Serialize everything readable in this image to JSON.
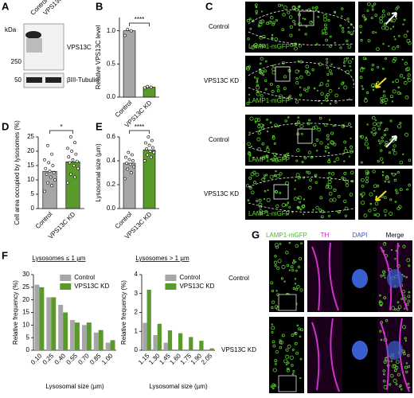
{
  "panel_labels": [
    "A",
    "B",
    "C",
    "D",
    "E",
    "F",
    "G"
  ],
  "panel_a": {
    "unit": "kDa",
    "lanes": [
      "Control",
      "VPS13C KD"
    ],
    "markers": [
      "250",
      "50"
    ],
    "bands": [
      "VPS13C",
      "βIII-Tubulin"
    ]
  },
  "panel_c": {
    "rows": [
      {
        "label": "Control",
        "tag": "LAMP1-mGFP"
      },
      {
        "label": "VPS13C KD",
        "tag": "LAMP1-mGFP"
      },
      {
        "label": "Control",
        "tag": "LAMP1-mGFP"
      },
      {
        "label": "VPS13C KD",
        "tag": "LAMP1-mGFP"
      }
    ]
  },
  "panel_g": {
    "headers": [
      "LAMP1-mGFP",
      "TH",
      "DAPI",
      "Merge"
    ],
    "rows": [
      "Control",
      "VPS13C KD"
    ]
  },
  "chart_data": [
    {
      "type": "bar",
      "y_label": "Relative VPS13C level",
      "categories": [
        "Control",
        "VPS13C KD"
      ],
      "values": [
        1.0,
        0.15
      ],
      "colors": [
        "#a6a6a6",
        "#5a9a2a"
      ],
      "points": [
        [
          0.93,
          1.0,
          1.02
        ],
        [
          0.14,
          0.15,
          0.16
        ]
      ],
      "significance": "****",
      "ylim": [
        0,
        1.2
      ],
      "yticks": [
        {
          "value": 0,
          "label": "0.0"
        },
        {
          "value": 0.5,
          "label": "0.5"
        },
        {
          "value": 1,
          "label": "1.0"
        }
      ]
    },
    {
      "type": "bar",
      "y_label": "Cell area occupied by lysosomes (%)",
      "categories": [
        "Control",
        "VPS13C KD"
      ],
      "values": [
        13.0,
        16.3
      ],
      "colors": [
        "#a6a6a6",
        "#5a9a2a"
      ],
      "points": [
        [
          6,
          8,
          9,
          10,
          11,
          12,
          12.5,
          13,
          14,
          15,
          16,
          17,
          19,
          22
        ],
        [
          9,
          11,
          12,
          14,
          15,
          16,
          16.5,
          17,
          18,
          19,
          20,
          21,
          23,
          25
        ]
      ],
      "significance": "*",
      "ylim": [
        0,
        25
      ],
      "yticks": [
        0,
        5,
        10,
        15,
        20,
        25
      ]
    },
    {
      "type": "bar",
      "y_label": "Lysosomal size (µm)",
      "categories": [
        "Control",
        "VPS13C KD"
      ],
      "values": [
        0.38,
        0.49
      ],
      "colors": [
        "#a6a6a6",
        "#5a9a2a"
      ],
      "points": [
        [
          0.25,
          0.3,
          0.33,
          0.35,
          0.37,
          0.38,
          0.4,
          0.41,
          0.43,
          0.45,
          0.47
        ],
        [
          0.4,
          0.43,
          0.45,
          0.47,
          0.48,
          0.5,
          0.51,
          0.53,
          0.55,
          0.57,
          0.6
        ]
      ],
      "significance": "****",
      "ylim": [
        0,
        0.6
      ],
      "yticks": [
        {
          "value": 0,
          "label": "0.0"
        },
        {
          "value": 0.2,
          "label": "0.2"
        },
        {
          "value": 0.4,
          "label": "0.4"
        },
        {
          "value": 0.6,
          "label": "0.6"
        }
      ]
    },
    {
      "type": "grouped-bar",
      "title": "Lysosomes ≤ 1 µm",
      "x_label": "Lysosomal size (µm)",
      "y_label": "Relative frequency (%)",
      "categories": [
        "0.10",
        "0.25",
        "0.40",
        "0.55",
        "0.70",
        "0.85",
        "1.00"
      ],
      "series": [
        {
          "name": "Control",
          "color": "#a6a6a6",
          "values": [
            26,
            21,
            18,
            12,
            10,
            7,
            3
          ]
        },
        {
          "name": "VPS13C KD",
          "color": "#5a9a2a",
          "values": [
            25,
            21,
            15,
            11,
            11,
            8,
            4
          ]
        }
      ],
      "ylim": [
        0,
        30
      ],
      "yticks": [
        0,
        5,
        10,
        15,
        20,
        25,
        30
      ]
    },
    {
      "type": "grouped-bar",
      "title": "Lysosomes > 1 µm",
      "x_label": "Lysosomal size (µm)",
      "y_label": "Relative frequency (%)",
      "categories": [
        "1.15",
        "1.30",
        "1.45",
        "1.60",
        "1.75",
        "1.90",
        "2.05"
      ],
      "series": [
        {
          "name": "Control",
          "color": "#a6a6a6",
          "values": [
            1.45,
            0.8,
            0.4,
            0,
            0,
            0,
            0
          ]
        },
        {
          "name": "VPS13C KD",
          "color": "#5a9a2a",
          "values": [
            3.2,
            1.4,
            1.05,
            0.9,
            0.7,
            0.5,
            0.1
          ]
        }
      ],
      "ylim": [
        0,
        4
      ],
      "yticks": [
        0,
        1,
        2,
        3,
        4
      ]
    }
  ]
}
